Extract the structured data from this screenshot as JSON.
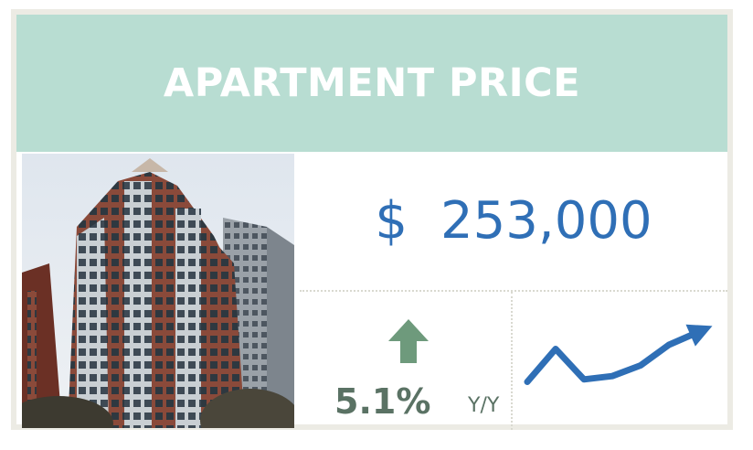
{
  "header": {
    "title": "APARTMENT PRICE"
  },
  "price": {
    "currency": "$",
    "value": "253,000"
  },
  "change": {
    "value": "5.1%",
    "period": "Y/Y",
    "direction": "up",
    "arrow_icon": "up-arrow-icon"
  },
  "trend": {
    "icon": "trend-line-icon",
    "values": [
      0.35,
      0.75,
      0.38,
      0.42,
      0.55,
      0.8,
      0.95
    ]
  },
  "colors": {
    "header_bg": "#b8ddd2",
    "price_text": "#2f6fb6",
    "change_text": "#5a7264",
    "arrow": "#6e9a7c",
    "trend_line": "#2f6fb6"
  }
}
